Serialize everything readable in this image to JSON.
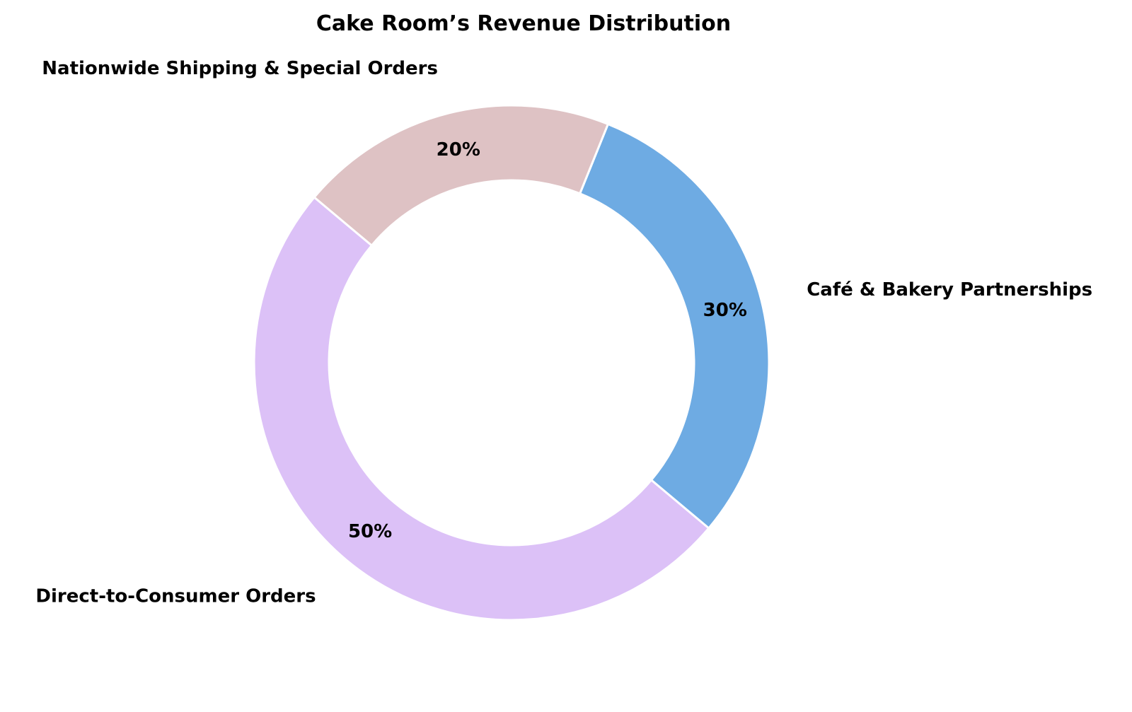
{
  "chart_data": {
    "type": "pie",
    "title": "Cake Room’s Revenue Distribution",
    "donut": true,
    "start_angle_deg": 140,
    "direction": "counterclockwise",
    "slices": [
      {
        "label": "Direct-to-Consumer Orders",
        "value": 50,
        "pct_label": "50%",
        "color": "#dcc1f7"
      },
      {
        "label": "Café & Bakery Partnerships",
        "value": 30,
        "pct_label": "30%",
        "color": "#6eabe3"
      },
      {
        "label": "Nationwide Shipping & Special Orders",
        "value": 20,
        "pct_label": "20%",
        "color": "#dec2c4"
      }
    ],
    "edge_color": "#ffffff"
  }
}
